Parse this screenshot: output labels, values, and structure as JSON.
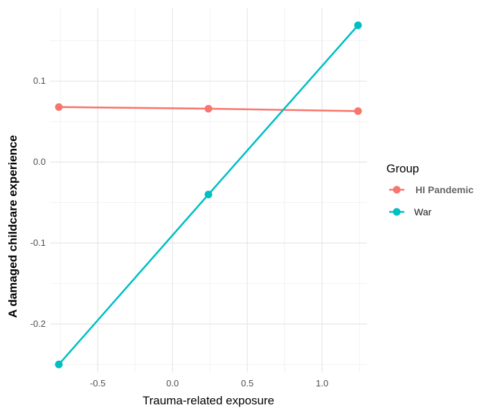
{
  "chart_data": {
    "type": "line",
    "xlabel": "Trauma-related exposure",
    "ylabel": "A damaged childcare experience",
    "xlim": [
      -0.82,
      1.3
    ],
    "ylim": [
      -0.26,
      0.19
    ],
    "x_ticks": [
      -0.5,
      0.0,
      0.5,
      1.0
    ],
    "x_tick_labels": [
      "-0.5",
      "0.0",
      "0.5",
      "1.0"
    ],
    "y_ticks": [
      -0.2,
      -0.1,
      0.0,
      0.1
    ],
    "y_tick_labels": [
      "-0.2",
      "-0.1",
      "0.0",
      "0.1"
    ],
    "grid": true,
    "legend": {
      "title": "Group",
      "placement": "right"
    },
    "series": [
      {
        "name": "HI Pandemic",
        "color": "#F8766D",
        "x": [
          -0.76,
          0.24,
          1.24
        ],
        "y": [
          0.068,
          0.066,
          0.063
        ]
      },
      {
        "name": "War",
        "color": "#00BFC4",
        "x": [
          -0.76,
          0.24,
          1.24
        ],
        "y": [
          -0.25,
          -0.04,
          0.169
        ]
      }
    ]
  }
}
